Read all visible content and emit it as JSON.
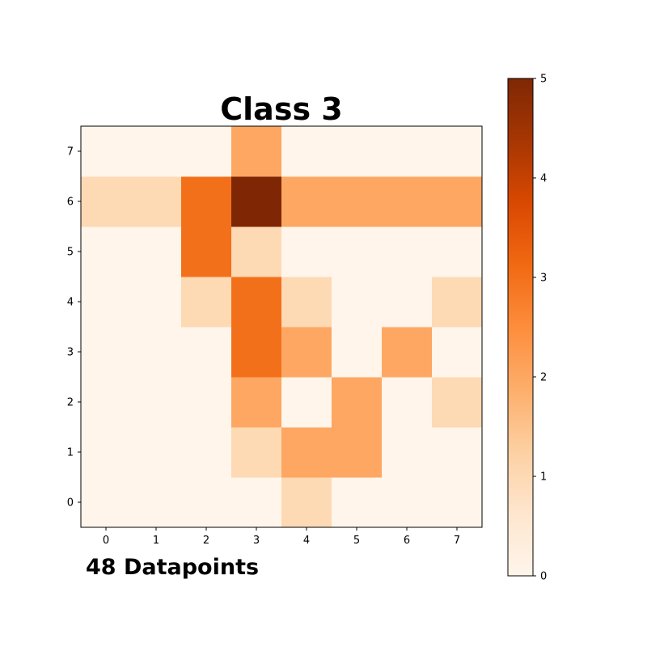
{
  "chart_data": {
    "type": "heatmap",
    "title": "Class 3",
    "x": [
      0,
      1,
      2,
      3,
      4,
      5,
      6,
      7
    ],
    "y": [
      0,
      1,
      2,
      3,
      4,
      5,
      6,
      7
    ],
    "values": [
      [
        0,
        0,
        0,
        0,
        1,
        0,
        0,
        0
      ],
      [
        0,
        0,
        0,
        1,
        2,
        2,
        0,
        0
      ],
      [
        0,
        0,
        0,
        2,
        0,
        2,
        0,
        1
      ],
      [
        0,
        0,
        0,
        3,
        2,
        0,
        2,
        0
      ],
      [
        0,
        0,
        1,
        3,
        1,
        0,
        0,
        1
      ],
      [
        0,
        0,
        3,
        1,
        0,
        0,
        0,
        0
      ],
      [
        1,
        1,
        3,
        5,
        2,
        2,
        2,
        2
      ],
      [
        0,
        0,
        0,
        2,
        0,
        0,
        0,
        0
      ]
    ],
    "colormap": "Oranges",
    "vmin": 0,
    "vmax": 5,
    "colorbar_ticks": [
      0,
      1,
      2,
      3,
      4,
      5
    ]
  },
  "footnote": "48 Datapoints"
}
